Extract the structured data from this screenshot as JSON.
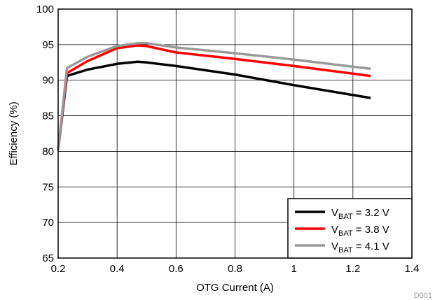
{
  "chart_data": {
    "type": "line",
    "xlabel": "OTG Current (A)",
    "ylabel": "Efficiency (%)",
    "xlim": [
      0.2,
      1.4
    ],
    "ylim": [
      65,
      100
    ],
    "x_ticks": [
      0.2,
      0.4,
      0.6,
      0.8,
      1,
      1.2,
      1.4
    ],
    "x_tick_labels": [
      "0.2",
      "0.4",
      "0.6",
      "0.8",
      "1",
      "1.2",
      "1.4"
    ],
    "y_ticks": [
      65,
      70,
      75,
      80,
      85,
      90,
      95,
      100
    ],
    "y_tick_labels": [
      "65",
      "70",
      "75",
      "80",
      "85",
      "90",
      "95",
      "100"
    ],
    "grid": true,
    "legend_position": "bottom-right",
    "series": [
      {
        "name": "V_BAT = 3.2 V",
        "legend": {
          "main": "V",
          "sub": "BAT",
          "rest": " = 3.2 V"
        },
        "color": "#000000",
        "x": [
          0.2,
          0.23,
          0.3,
          0.4,
          0.47,
          0.5,
          0.6,
          0.8,
          1.0,
          1.26
        ],
        "y": [
          80.2,
          90.6,
          91.5,
          92.3,
          92.6,
          92.5,
          92.0,
          90.8,
          89.3,
          87.5
        ]
      },
      {
        "name": "V_BAT = 3.8 V",
        "legend": {
          "main": "V",
          "sub": "BAT",
          "rest": " = 3.8 V"
        },
        "color": "#ff0000",
        "x": [
          0.2,
          0.23,
          0.3,
          0.4,
          0.47,
          0.5,
          0.6,
          0.8,
          1.0,
          1.26
        ],
        "y": [
          80.2,
          91.0,
          92.7,
          94.5,
          94.9,
          94.8,
          93.9,
          93.0,
          92.0,
          90.6
        ]
      },
      {
        "name": "V_BAT = 4.1 V",
        "legend": {
          "main": "V",
          "sub": "BAT",
          "rest": " = 4.1 V"
        },
        "color": "#999999",
        "x": [
          0.2,
          0.23,
          0.3,
          0.4,
          0.47,
          0.5,
          0.6,
          0.8,
          1.0,
          1.26
        ],
        "y": [
          80.2,
          91.7,
          93.3,
          94.8,
          95.2,
          95.2,
          94.6,
          93.8,
          92.9,
          91.6
        ]
      }
    ]
  },
  "code_label": "D001"
}
